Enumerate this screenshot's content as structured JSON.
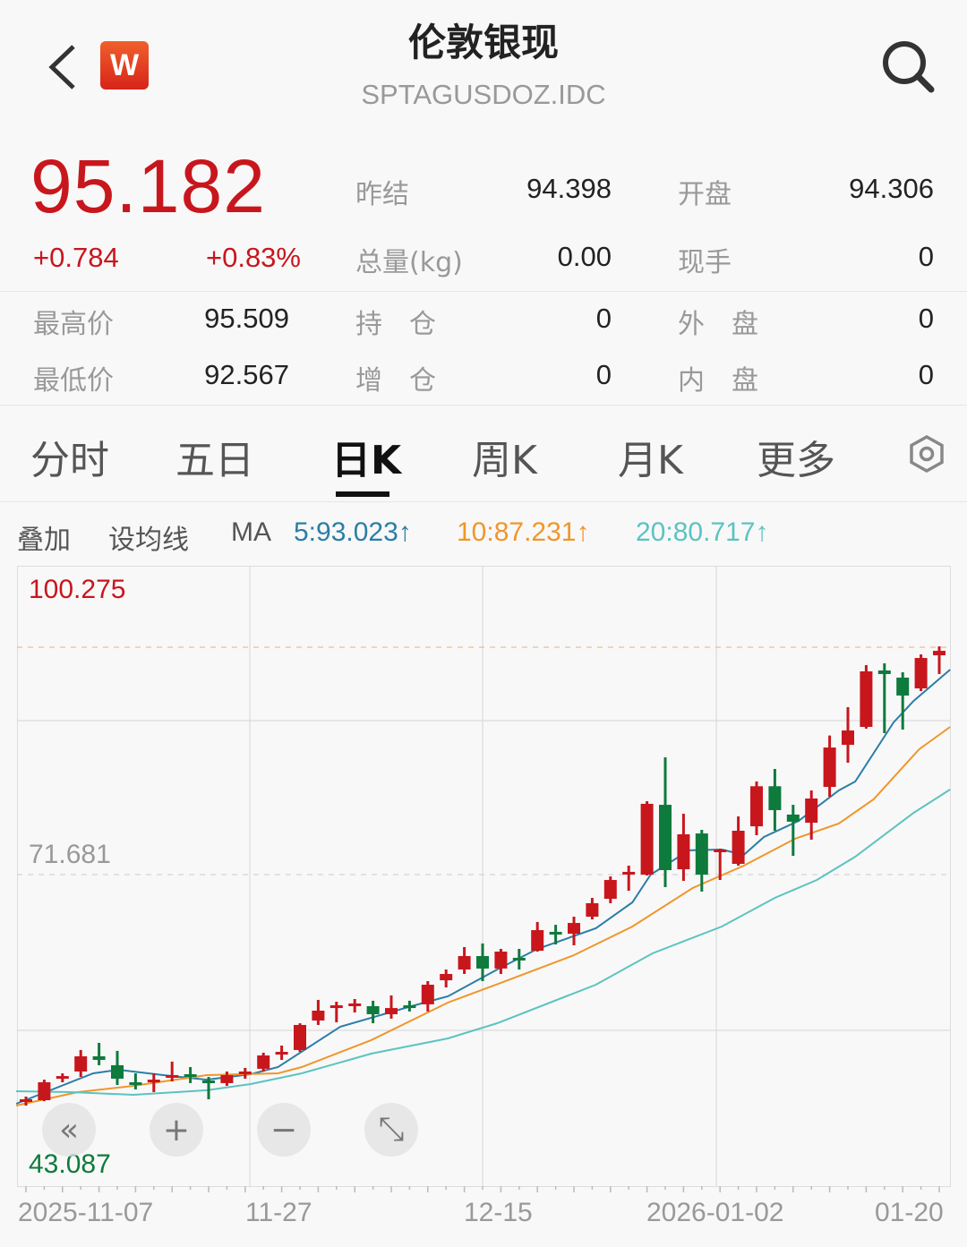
{
  "header": {
    "title": "伦敦银现",
    "subtitle": "SPTAGUSDOZ.IDC",
    "logo_text": "W",
    "back_icon": "chevron-left-icon",
    "search_icon": "search-icon"
  },
  "quote": {
    "price": "95.182",
    "change": "+0.784",
    "change_pct": "+0.83%",
    "up_color": "#c8161d",
    "down_color": "#0e7a3c",
    "stats": [
      {
        "label": "昨结",
        "value": "94.398"
      },
      {
        "label": "开盘",
        "value": "94.306"
      },
      {
        "label": "总量(kg)",
        "value": "0.00"
      },
      {
        "label": "现手",
        "value": "0"
      },
      {
        "label": "最高价",
        "value": "95.509"
      },
      {
        "label": "持　仓",
        "value": "0"
      },
      {
        "label": "外　盘",
        "value": "0"
      },
      {
        "label": "最低价",
        "value": "92.567"
      },
      {
        "label": "增　仓",
        "value": "0"
      },
      {
        "label": "内　盘",
        "value": "0"
      }
    ]
  },
  "tabs": [
    {
      "label": "分时"
    },
    {
      "label": "五日"
    },
    {
      "label": "日K",
      "active": true
    },
    {
      "label": "周K"
    },
    {
      "label": "月K"
    },
    {
      "label": "更多"
    }
  ],
  "settings_icon": "hexagon-gear-icon",
  "ma_bar": {
    "overlay": "叠加",
    "set_ma": "设均线",
    "ma": "MA",
    "ma5": {
      "text": "5:93.023↑",
      "color": "#2b7ea6"
    },
    "ma10": {
      "text": "10:87.231↑",
      "color": "#f0962a"
    },
    "ma20": {
      "text": "20:80.717↑",
      "color": "#5cc3c0"
    }
  },
  "chart_controls": [
    {
      "icon": "double-chevron-left-icon",
      "glyph": "«"
    },
    {
      "icon": "zoom-in-plus-icon",
      "glyph": "+"
    },
    {
      "icon": "zoom-out-minus-icon",
      "glyph": "−"
    },
    {
      "icon": "fullscreen-expand-icon",
      "glyph": "⤡"
    }
  ],
  "chart_data": {
    "type": "candlestick",
    "ylim": [
      43.087,
      100.275
    ],
    "y_tick_labels": {
      "top": "100.275",
      "mid": "71.681",
      "bottom": "43.087"
    },
    "x_tick_labels": [
      "2025-11-07",
      "11-27",
      "12-15",
      "2026-01-02",
      "01-20"
    ],
    "grid": true,
    "candles_ohlc": [
      [
        50.87,
        51.37,
        50.54,
        51.12
      ],
      [
        51.04,
        52.93,
        50.95,
        52.69
      ],
      [
        53.02,
        53.51,
        52.69,
        53.26
      ],
      [
        53.68,
        55.66,
        53.18,
        55.08
      ],
      [
        55.08,
        56.32,
        54.26,
        54.75
      ],
      [
        54.26,
        55.58,
        52.44,
        53.02
      ],
      [
        52.69,
        53.51,
        52.03,
        52.52
      ],
      [
        52.77,
        53.51,
        51.78,
        52.93
      ],
      [
        53.18,
        54.59,
        52.77,
        53.35
      ],
      [
        53.43,
        54.09,
        52.61,
        53.26
      ],
      [
        52.85,
        53.18,
        51.12,
        52.69
      ],
      [
        52.61,
        53.68,
        52.36,
        53.35
      ],
      [
        53.51,
        54.01,
        53.02,
        53.68
      ],
      [
        53.93,
        55.41,
        53.68,
        55.16
      ],
      [
        55.33,
        56.07,
        54.75,
        55.49
      ],
      [
        55.66,
        58.13,
        55.49,
        57.97
      ],
      [
        58.38,
        60.28,
        57.97,
        59.29
      ],
      [
        59.62,
        60.11,
        58.22,
        59.78
      ],
      [
        59.78,
        60.36,
        59.12,
        59.95
      ],
      [
        59.7,
        60.2,
        58.13,
        58.96
      ],
      [
        58.96,
        60.69,
        58.55,
        59.53
      ],
      [
        59.78,
        60.2,
        59.21,
        59.62
      ],
      [
        59.87,
        62.01,
        59.21,
        61.68
      ],
      [
        62.09,
        63.08,
        61.43,
        62.67
      ],
      [
        63.08,
        65.15,
        62.67,
        64.32
      ],
      [
        64.32,
        65.48,
        62.01,
        63.17
      ],
      [
        63.17,
        64.98,
        62.67,
        64.73
      ],
      [
        64.16,
        64.98,
        63.08,
        63.99
      ],
      [
        64.81,
        67.46,
        64.73,
        66.71
      ],
      [
        66.55,
        67.2,
        65.39,
        66.38
      ],
      [
        66.38,
        67.95,
        65.31,
        67.37
      ],
      [
        67.95,
        69.68,
        67.7,
        69.19
      ],
      [
        69.6,
        71.66,
        69.19,
        71.33
      ],
      [
        71.83,
        72.65,
        70.34,
        72.08
      ],
      [
        71.83,
        78.59,
        71.75,
        78.35
      ],
      [
        78.26,
        82.63,
        70.67,
        72.24
      ],
      [
        72.32,
        77.44,
        71.25,
        75.54
      ],
      [
        75.62,
        75.95,
        70.26,
        71.83
      ],
      [
        73.97,
        74.22,
        71.33,
        74.14
      ],
      [
        72.82,
        77.19,
        72.65,
        75.87
      ],
      [
        76.28,
        80.41,
        75.46,
        79.97
      ],
      [
        79.97,
        81.56,
        75.87,
        77.77
      ],
      [
        77.36,
        78.26,
        73.56,
        76.7
      ],
      [
        76.61,
        79.58,
        75.05,
        78.84
      ],
      [
        79.91,
        84.65,
        79.01,
        83.54
      ],
      [
        83.79,
        87.26,
        82.14,
        85.11
      ],
      [
        85.44,
        91.13,
        85.27,
        90.56
      ],
      [
        90.64,
        91.3,
        84.86,
        90.31
      ],
      [
        89.98,
        90.47,
        85.19,
        88.33
      ],
      [
        88.99,
        92.12,
        88.74,
        91.79
      ],
      [
        92.04,
        92.86,
        90.31,
        92.45
      ]
    ],
    "series": [
      {
        "name": "MA5",
        "color": "#2b7ea6",
        "points": [
          [
            0.46,
            50.71
          ],
          [
            4.68,
            53.51
          ],
          [
            6.05,
            53.84
          ],
          [
            8.89,
            53.27
          ],
          [
            10.9,
            52.93
          ],
          [
            13.3,
            53.43
          ],
          [
            14.8,
            54.09
          ],
          [
            18.2,
            57.8
          ],
          [
            22.1,
            59.7
          ],
          [
            24.1,
            60.61
          ],
          [
            26.8,
            63.08
          ],
          [
            29.0,
            64.98
          ],
          [
            32.2,
            66.88
          ],
          [
            34.2,
            69.27
          ],
          [
            35.2,
            71.83
          ],
          [
            37.3,
            74.06
          ],
          [
            39.1,
            74.14
          ],
          [
            40.3,
            73.64
          ],
          [
            41.4,
            75.29
          ],
          [
            43.3,
            76.78
          ],
          [
            45.5,
            79.58
          ],
          [
            46.4,
            80.41
          ],
          [
            48.5,
            85.85
          ],
          [
            49.6,
            87.83
          ],
          [
            51.6,
            90.72
          ]
        ]
      },
      {
        "name": "MA10",
        "color": "#f0962a",
        "points": [
          [
            0.46,
            50.54
          ],
          [
            3.84,
            51.78
          ],
          [
            6.88,
            52.36
          ],
          [
            10.9,
            53.35
          ],
          [
            14.8,
            53.51
          ],
          [
            16.1,
            54.09
          ],
          [
            19.9,
            56.57
          ],
          [
            22.1,
            58.38
          ],
          [
            24.1,
            60.03
          ],
          [
            27.0,
            61.85
          ],
          [
            31.0,
            64.4
          ],
          [
            34.2,
            67.04
          ],
          [
            37.5,
            70.59
          ],
          [
            40.3,
            72.65
          ],
          [
            43.1,
            75.13
          ],
          [
            45.5,
            76.53
          ],
          [
            47.4,
            78.76
          ],
          [
            49.9,
            83.38
          ],
          [
            51.6,
            85.44
          ]
        ]
      },
      {
        "name": "MA20",
        "color": "#5cc3c0",
        "points": [
          [
            0.46,
            51.86
          ],
          [
            3.5,
            51.78
          ],
          [
            6.88,
            51.53
          ],
          [
            10.9,
            51.95
          ],
          [
            13.3,
            52.52
          ],
          [
            16.1,
            53.51
          ],
          [
            19.9,
            55.33
          ],
          [
            24.1,
            56.73
          ],
          [
            26.8,
            58.13
          ],
          [
            32.2,
            61.68
          ],
          [
            35.3,
            64.57
          ],
          [
            39.1,
            67.04
          ],
          [
            42.0,
            69.68
          ],
          [
            44.3,
            71.33
          ],
          [
            46.4,
            73.48
          ],
          [
            49.6,
            77.52
          ],
          [
            51.6,
            79.67
          ]
        ]
      }
    ]
  }
}
